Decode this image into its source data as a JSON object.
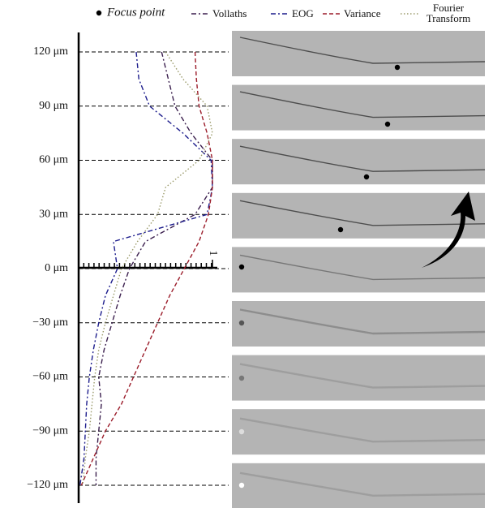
{
  "chart_data": {
    "type": "line",
    "focus_point_label": "Focus point",
    "y": [
      120,
      105,
      90,
      75,
      60,
      45,
      30,
      15,
      0,
      -15,
      -30,
      -45,
      -60,
      -75,
      -90,
      -105,
      -120
    ],
    "ylim": [
      -120,
      120
    ],
    "yticks": [
      {
        "value": 120,
        "label": "120 μm"
      },
      {
        "value": 90,
        "label": "90 μm"
      },
      {
        "value": 60,
        "label": "60 μm"
      },
      {
        "value": 30,
        "label": "30 μm"
      },
      {
        "value": 0,
        "label": "0 μm"
      },
      {
        "value": -30,
        "label": "−30 μm"
      },
      {
        "value": -60,
        "label": "−60 μm"
      },
      {
        "value": -90,
        "label": "−90 μm"
      },
      {
        "value": -120,
        "label": "−120 μm"
      }
    ],
    "xlim": [
      0,
      1
    ],
    "xticks": [
      {
        "value": 1,
        "label": "1"
      }
    ],
    "grid": true,
    "series": [
      {
        "name": "Vollaths",
        "color": "#3b1f4e",
        "dash": "6 3 2 3",
        "values": [
          0.62,
          0.67,
          0.72,
          0.84,
          1.0,
          1.0,
          0.87,
          0.5,
          0.38,
          0.31,
          0.25,
          0.19,
          0.15,
          0.17,
          0.15,
          0.13,
          0.13
        ]
      },
      {
        "name": "EOG",
        "color": "#1c1c8c",
        "dash": "6 3 2 3",
        "values": [
          0.43,
          0.45,
          0.53,
          0.78,
          0.99,
          1.0,
          0.96,
          0.26,
          0.29,
          0.2,
          0.15,
          0.11,
          0.08,
          0.06,
          0.05,
          0.04,
          0.01
        ]
      },
      {
        "name": "Variance",
        "color": "#9b1c2a",
        "dash": "5 3",
        "values": [
          0.87,
          0.88,
          0.9,
          0.96,
          1.0,
          1.0,
          0.97,
          0.9,
          0.79,
          0.68,
          0.59,
          0.5,
          0.41,
          0.32,
          0.2,
          0.11,
          0.02
        ]
      },
      {
        "name": "Fourier Transform",
        "color": "#9a9a6a",
        "dash": "1.5 2.5",
        "values": [
          0.65,
          0.78,
          0.96,
          1.0,
          0.9,
          0.65,
          0.59,
          0.44,
          0.32,
          0.26,
          0.2,
          0.15,
          0.12,
          0.1,
          0.08,
          0.05,
          0.03
        ]
      }
    ]
  }
}
